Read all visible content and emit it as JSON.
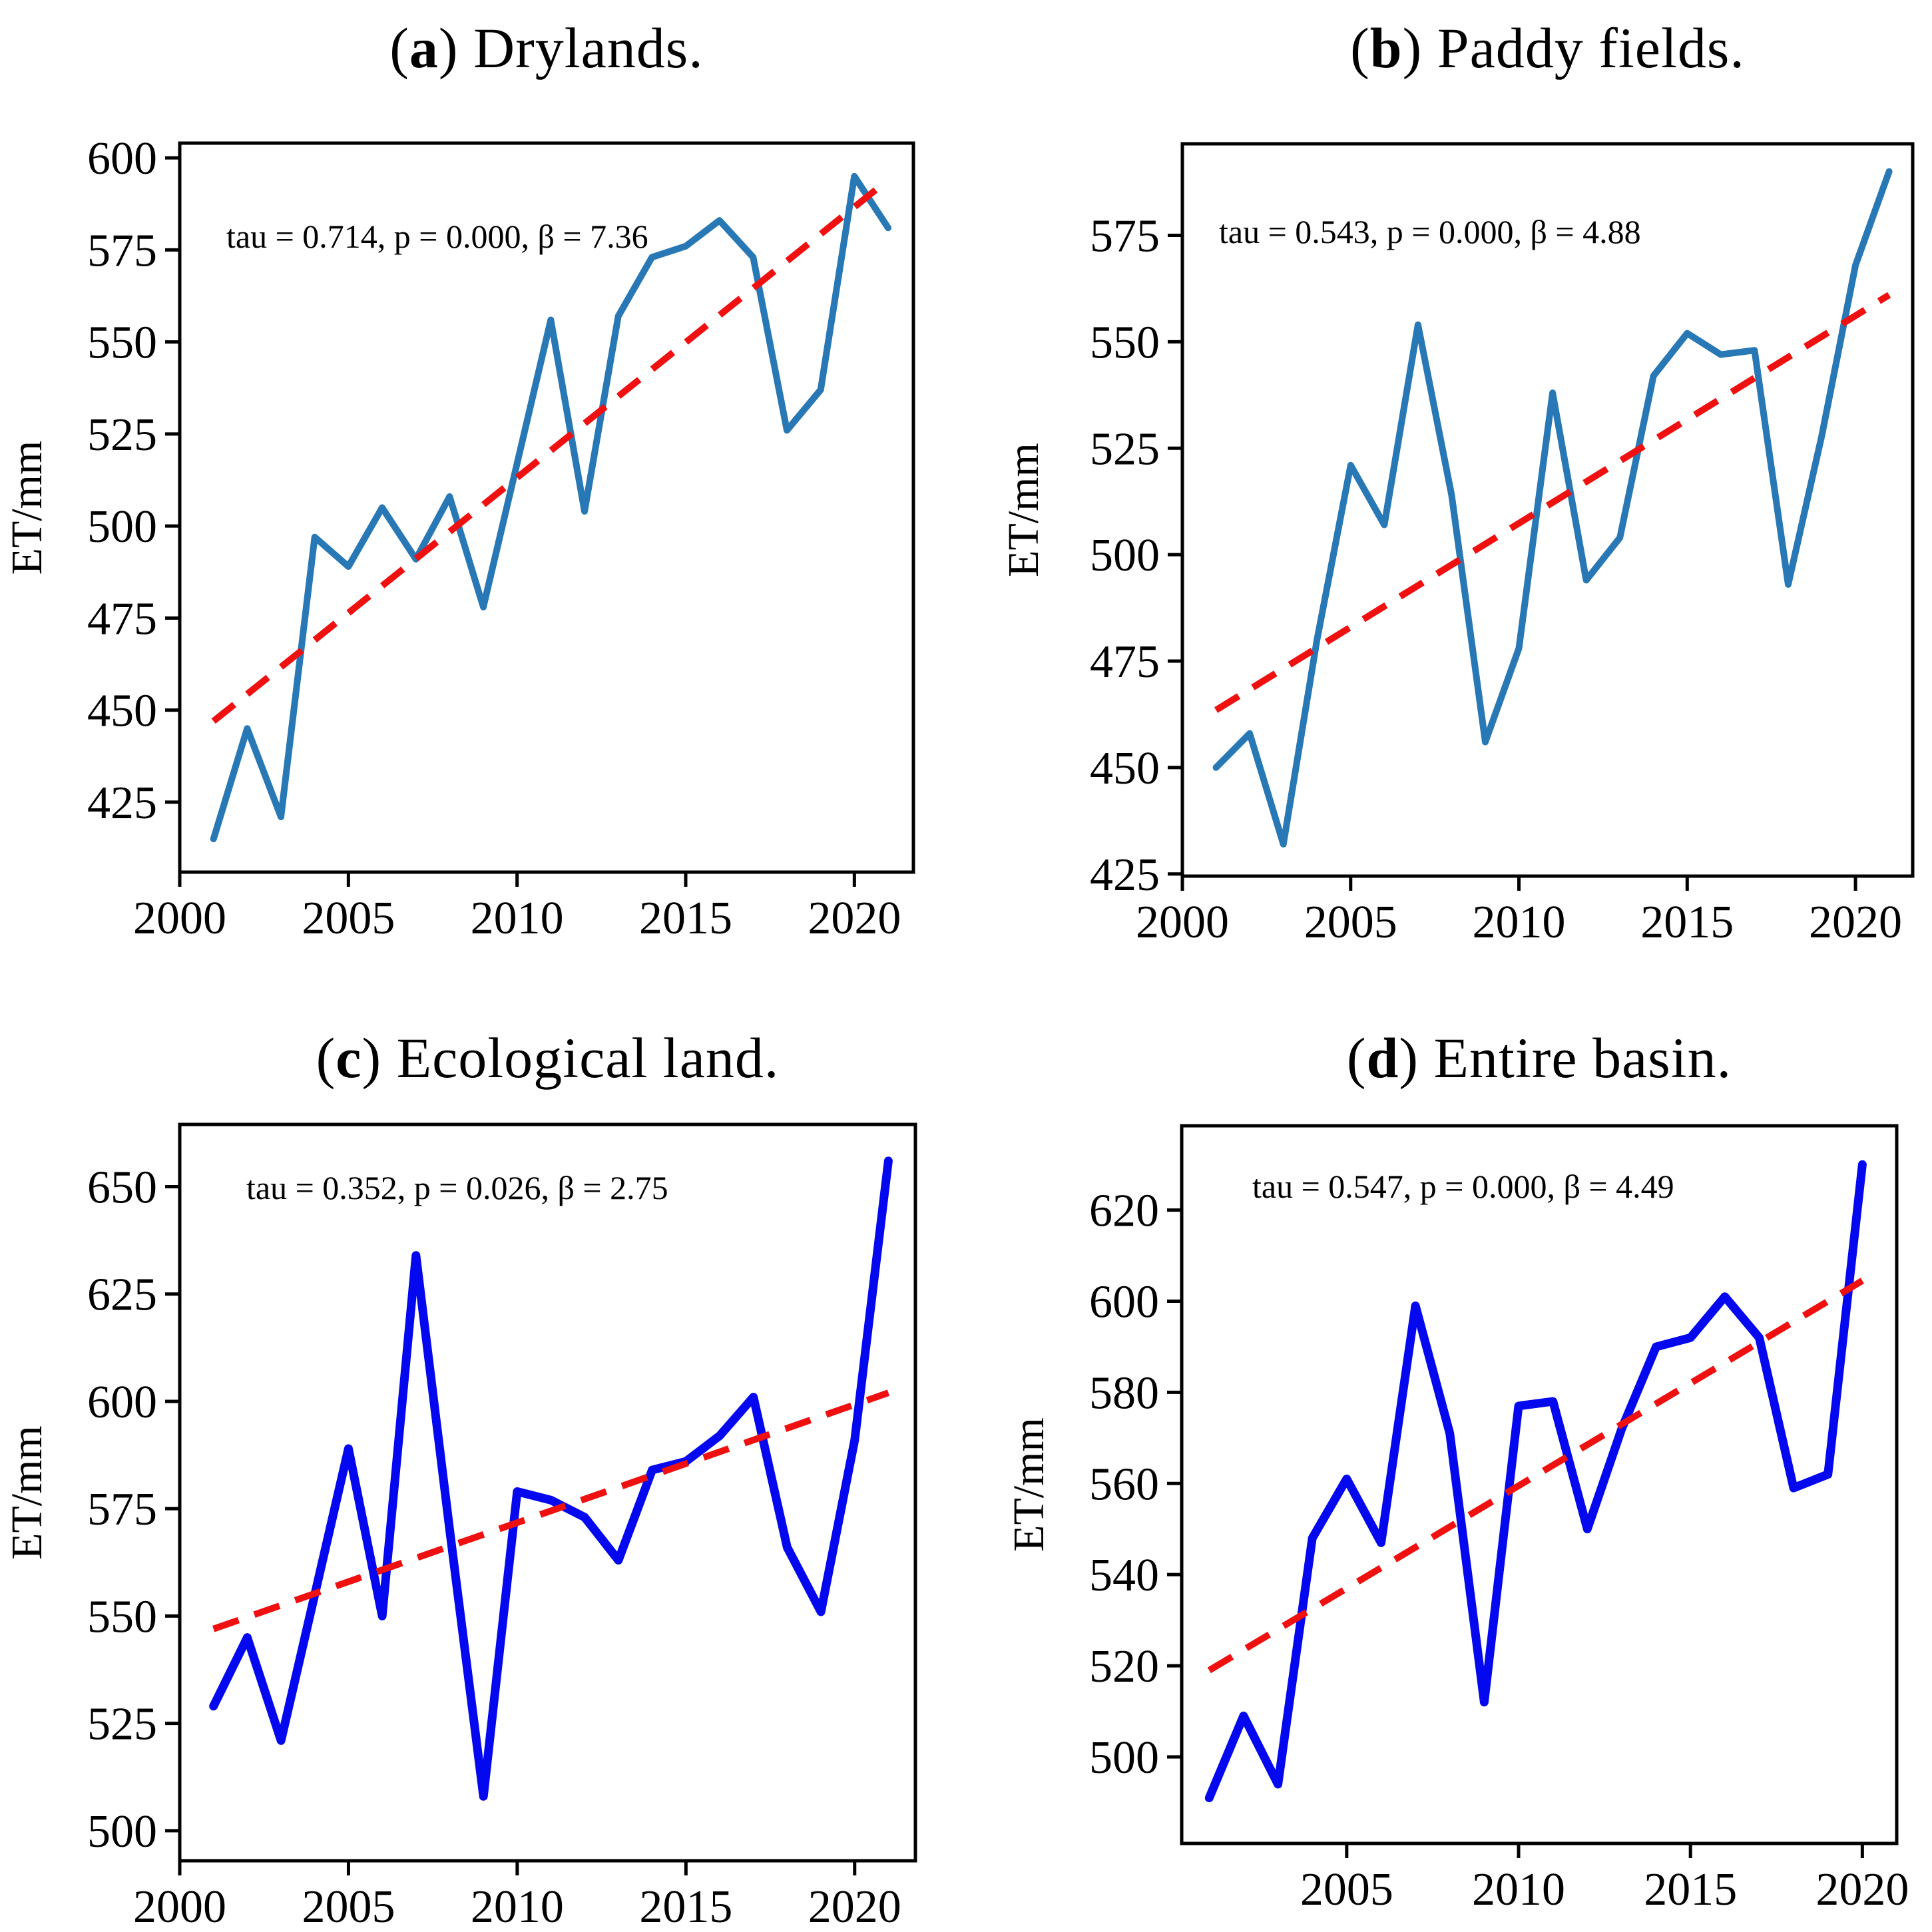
{
  "page": {
    "background": "#ffffff"
  },
  "colors": {
    "series_blue_top": "#2878b5",
    "series_blue_bottom": "#0408ef",
    "trend_red": "#ef1010",
    "axis": "#000000",
    "text": "#000000"
  },
  "chart_data": [
    {
      "id": "a",
      "type": "line",
      "tag_open": "(",
      "tag_letter": "a",
      "tag_close": ")",
      "title": "Drylands.",
      "annotation": "tau = 0.714, p = 0.000, β = 7.36",
      "stats": {
        "tau": 0.714,
        "p": 0.0,
        "beta": 7.36
      },
      "ylabel": "ET/mm",
      "x": [
        2001,
        2002,
        2003,
        2004,
        2005,
        2006,
        2007,
        2008,
        2009,
        2010,
        2011,
        2012,
        2013,
        2014,
        2015,
        2016,
        2017,
        2018,
        2019,
        2020,
        2021
      ],
      "values": [
        415,
        445,
        421,
        497,
        489,
        505,
        491,
        508,
        478,
        517,
        556,
        504,
        557,
        573,
        576,
        583,
        573,
        526,
        537,
        595,
        581
      ],
      "trend": {
        "x0": 2001,
        "v0": 447,
        "x1": 2021,
        "v1": 594
      },
      "xticks": [
        2000,
        2005,
        2010,
        2015,
        2020
      ],
      "yticks": [
        425,
        450,
        475,
        500,
        525,
        550,
        575,
        600
      ],
      "xlim": [
        2000,
        2021.75
      ],
      "ylim": [
        406,
        604
      ],
      "line_color": "#2878b5",
      "trend_color": "#ef1010",
      "grid": false,
      "legend": "none"
    },
    {
      "id": "b",
      "type": "line",
      "tag_open": "(",
      "tag_letter": "b",
      "tag_close": ")",
      "title": "Paddy fields.",
      "annotation": "tau = 0.543, p = 0.000, β = 4.88",
      "stats": {
        "tau": 0.543,
        "p": 0.0,
        "beta": 4.88
      },
      "ylabel": "ET/mm",
      "x": [
        2001,
        2002,
        2003,
        2004,
        2005,
        2006,
        2007,
        2008,
        2009,
        2010,
        2011,
        2012,
        2013,
        2014,
        2015,
        2016,
        2017,
        2018,
        2019,
        2020,
        2021
      ],
      "values": [
        450,
        458,
        432,
        480,
        521,
        507,
        554,
        514,
        456,
        478,
        538,
        494,
        504,
        542,
        552,
        547,
        548,
        493,
        528,
        568,
        590
      ],
      "trend": {
        "x0": 2001,
        "v0": 463.5,
        "x1": 2021,
        "v1": 561
      },
      "xticks": [
        2000,
        2005,
        2010,
        2015,
        2020
      ],
      "yticks": [
        425,
        450,
        475,
        500,
        525,
        550,
        575
      ],
      "xlim": [
        2000,
        2021.7
      ],
      "ylim": [
        424.5,
        596.5
      ],
      "line_color": "#2878b5",
      "trend_color": "#ef1010",
      "grid": false,
      "legend": "none"
    },
    {
      "id": "c",
      "type": "line",
      "tag_open": "(",
      "tag_letter": "c",
      "tag_close": ")",
      "title": "Ecological land.",
      "annotation": "tau = 0.352, p = 0.026, β = 2.75",
      "stats": {
        "tau": 0.352,
        "p": 0.026,
        "beta": 2.75
      },
      "ylabel": "ET/mm",
      "x": [
        2001,
        2002,
        2003,
        2004,
        2005,
        2006,
        2007,
        2008,
        2009,
        2010,
        2011,
        2012,
        2013,
        2014,
        2015,
        2016,
        2017,
        2018,
        2019,
        2020,
        2021
      ],
      "values": [
        529,
        545,
        521,
        555,
        589,
        550,
        634,
        570,
        508,
        579,
        577,
        573,
        563,
        584,
        586,
        592,
        601,
        566,
        551,
        591,
        656
      ],
      "trend": {
        "x0": 2001,
        "v0": 547,
        "x1": 2021,
        "v1": 602
      },
      "xticks": [
        2000,
        2005,
        2010,
        2015,
        2020
      ],
      "yticks": [
        500,
        525,
        550,
        575,
        600,
        625,
        650
      ],
      "xlim": [
        2000,
        2021.8
      ],
      "ylim": [
        493,
        664.5
      ],
      "line_color": "#0408ef",
      "trend_color": "#ef1010",
      "grid": false,
      "legend": "none"
    },
    {
      "id": "d",
      "type": "line",
      "tag_open": "(",
      "tag_letter": "d",
      "tag_close": ")",
      "title": "Entire basin.",
      "annotation": "tau = 0.547, p = 0.000, β = 4.49",
      "stats": {
        "tau": 0.547,
        "p": 0.0,
        "beta": 4.49
      },
      "ylabel": "ET/mm",
      "x": [
        2001,
        2002,
        2003,
        2004,
        2005,
        2006,
        2007,
        2008,
        2009,
        2010,
        2011,
        2012,
        2013,
        2014,
        2015,
        2016,
        2017,
        2018,
        2019,
        2020
      ],
      "values": [
        491,
        509,
        494,
        548,
        561,
        547,
        599,
        571,
        512,
        577,
        578,
        550,
        572,
        590,
        592,
        601,
        592,
        559,
        562,
        630
      ],
      "trend": {
        "x0": 2001,
        "v0": 519,
        "x1": 2020,
        "v1": 604.5
      },
      "xticks": [
        2005,
        2010,
        2015,
        2020
      ],
      "yticks": [
        500,
        520,
        540,
        560,
        580,
        600,
        620
      ],
      "xlim": [
        2000.2,
        2021.0
      ],
      "ylim": [
        481,
        638.5
      ],
      "line_color": "#0408ef",
      "trend_color": "#ef1010",
      "grid": false,
      "legend": "none"
    }
  ]
}
